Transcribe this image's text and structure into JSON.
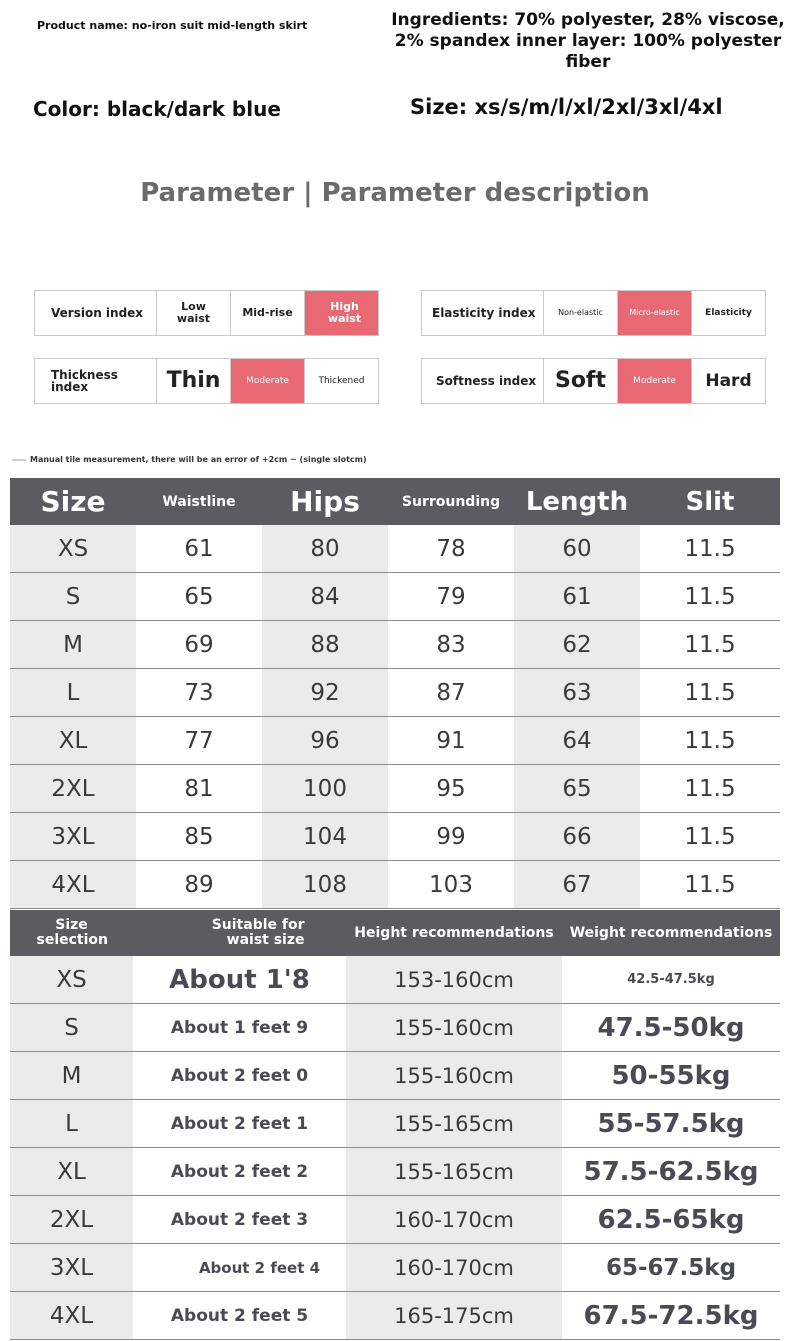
{
  "header": {
    "product_name": "Product name: no-iron suit mid-length skirt",
    "ingredients": "Ingredients: 70% polyester, 28% viscose, 2% spandex inner layer: 100% polyester fiber",
    "color": "Color: black/dark blue",
    "size": "Size: xs/s/m/l/xl/2xl/3xl/4xl"
  },
  "parameters": {
    "title": "Parameter | Parameter description",
    "version": {
      "label": "Version index",
      "options": [
        "Low waist",
        "Mid-rise",
        "High waist"
      ],
      "selected": "High waist"
    },
    "elasticity": {
      "label": "Elasticity index",
      "options": [
        "Non-elastic",
        "Micro-elastic",
        "Elasticity"
      ],
      "selected": "Micro-elastic"
    },
    "thickness": {
      "label": "Thickness index",
      "options": [
        "Thin",
        "Moderate",
        "Thickened"
      ],
      "selected": "Moderate"
    },
    "softness": {
      "label": "Softness index",
      "options": [
        "Soft",
        "Moderate",
        "Hard"
      ],
      "selected": "Moderate"
    },
    "highlight_color": "#e86874"
  },
  "measurement_note": "Manual tile measurement, there will be an error of +2cm ~ (single slotcm)",
  "size_table": {
    "headers": [
      "Size",
      "Waistline",
      "Hips",
      "Surrounding",
      "Length",
      "Slit"
    ],
    "rows": [
      [
        "XS",
        "61",
        "80",
        "78",
        "60",
        "11.5"
      ],
      [
        "S",
        "65",
        "84",
        "79",
        "61",
        "11.5"
      ],
      [
        "M",
        "69",
        "88",
        "83",
        "62",
        "11.5"
      ],
      [
        "L",
        "73",
        "92",
        "87",
        "63",
        "11.5"
      ],
      [
        "XL",
        "77",
        "96",
        "91",
        "64",
        "11.5"
      ],
      [
        "2XL",
        "81",
        "100",
        "95",
        "65",
        "11.5"
      ],
      [
        "3XL",
        "85",
        "104",
        "99",
        "66",
        "11.5"
      ],
      [
        "4XL",
        "89",
        "108",
        "103",
        "67",
        "11.5"
      ]
    ]
  },
  "recommend_table": {
    "headers": [
      "Size selection",
      "Suitable for waist size",
      "Height recommendations",
      "Weight recommendations"
    ],
    "rows": [
      [
        "XS",
        "About 1'8",
        "153-160cm",
        "42.5-47.5kg"
      ],
      [
        "S",
        "About 1 feet 9",
        "155-160cm",
        "47.5-50kg"
      ],
      [
        "M",
        "About 2 feet 0",
        "155-160cm",
        "50-55kg"
      ],
      [
        "L",
        "About 2 feet 1",
        "155-165cm",
        "55-57.5kg"
      ],
      [
        "XL",
        "About 2 feet 2",
        "155-165cm",
        "57.5-62.5kg"
      ],
      [
        "2XL",
        "About 2 feet 3",
        "160-170cm",
        "62.5-65kg"
      ],
      [
        "3XL",
        "About 2 feet 4",
        "160-170cm",
        "65-67.5kg"
      ],
      [
        "4XL",
        "About 2 feet 5",
        "165-175cm",
        "67.5-72.5kg"
      ]
    ]
  }
}
